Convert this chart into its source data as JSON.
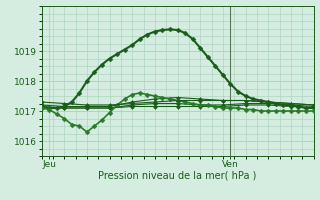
{
  "xlabel": "Pression niveau de la mer( hPa )",
  "bg_color": "#d4ede0",
  "grid_color": "#b0d4c0",
  "line_dark": "#1a5c1a",
  "line_mid": "#2a7a2a",
  "ylim": [
    1015.5,
    1020.5
  ],
  "yticks": [
    1016,
    1017,
    1018,
    1019
  ],
  "xlim": [
    0,
    72
  ],
  "x_jeu": 2,
  "x_ven": 50,
  "vline_x": 50,
  "series": [
    {
      "x": [
        0,
        2,
        4,
        6,
        8,
        10,
        12,
        14,
        16,
        18,
        20,
        22,
        24,
        26,
        28,
        30,
        32,
        34,
        36,
        38,
        40,
        42,
        44,
        46,
        48,
        50,
        52,
        54,
        56,
        58,
        60,
        62,
        64,
        66,
        68,
        70,
        72
      ],
      "y": [
        1017.15,
        1017.1,
        1017.1,
        1017.15,
        1017.3,
        1017.6,
        1018.0,
        1018.3,
        1018.55,
        1018.75,
        1018.9,
        1019.05,
        1019.2,
        1019.4,
        1019.55,
        1019.65,
        1019.7,
        1019.72,
        1019.7,
        1019.6,
        1019.4,
        1019.1,
        1018.8,
        1018.5,
        1018.2,
        1017.9,
        1017.65,
        1017.5,
        1017.4,
        1017.35,
        1017.3,
        1017.25,
        1017.2,
        1017.2,
        1017.15,
        1017.1,
        1017.1
      ],
      "lw": 1.5,
      "color": "#1a5c1a",
      "ms": 2.5
    },
    {
      "x": [
        0,
        6,
        12,
        18,
        24,
        30,
        36,
        42,
        48,
        54,
        60,
        66,
        72
      ],
      "y": [
        1017.1,
        1017.1,
        1017.1,
        1017.1,
        1017.15,
        1017.15,
        1017.15,
        1017.15,
        1017.15,
        1017.2,
        1017.2,
        1017.15,
        1017.1
      ],
      "lw": 0.8,
      "color": "#1a5c1a",
      "ms": 2
    },
    {
      "x": [
        0,
        6,
        12,
        18,
        24,
        30,
        36,
        42,
        48,
        54,
        60,
        66,
        72
      ],
      "y": [
        1017.15,
        1017.1,
        1017.1,
        1017.1,
        1017.2,
        1017.25,
        1017.25,
        1017.2,
        1017.2,
        1017.25,
        1017.25,
        1017.2,
        1017.15
      ],
      "lw": 0.8,
      "color": "#1a5c1a",
      "ms": 2
    },
    {
      "x": [
        0,
        6,
        12,
        18,
        24,
        30,
        36,
        42,
        48,
        54,
        60,
        66,
        72
      ],
      "y": [
        1017.2,
        1017.15,
        1017.15,
        1017.15,
        1017.3,
        1017.4,
        1017.45,
        1017.4,
        1017.35,
        1017.35,
        1017.3,
        1017.25,
        1017.2
      ],
      "lw": 0.8,
      "color": "#1a5c1a",
      "ms": 2
    },
    {
      "x": [
        0,
        2,
        4,
        6,
        8,
        10,
        12,
        14,
        16,
        18,
        20,
        22,
        24,
        26,
        28,
        30,
        32,
        34,
        36,
        38,
        40,
        42,
        44,
        46,
        48,
        50,
        52,
        54,
        56,
        58,
        60,
        62,
        64,
        66,
        68,
        70,
        72
      ],
      "y": [
        1017.1,
        1017.05,
        1016.9,
        1016.75,
        1016.55,
        1016.5,
        1016.3,
        1016.5,
        1016.7,
        1016.95,
        1017.2,
        1017.4,
        1017.55,
        1017.6,
        1017.55,
        1017.5,
        1017.45,
        1017.4,
        1017.35,
        1017.3,
        1017.25,
        1017.2,
        1017.2,
        1017.15,
        1017.1,
        1017.1,
        1017.1,
        1017.05,
        1017.05,
        1017.0,
        1017.0,
        1017.0,
        1017.0,
        1017.0,
        1017.0,
        1017.0,
        1017.0
      ],
      "lw": 1.2,
      "color": "#2a7a2a",
      "ms": 2.5
    },
    {
      "x": [
        0,
        6,
        12,
        18,
        24,
        30,
        36,
        42,
        48,
        54,
        60,
        66,
        72
      ],
      "y": [
        1017.3,
        1017.25,
        1017.2,
        1017.2,
        1017.25,
        1017.3,
        1017.35,
        1017.35,
        1017.35,
        1017.35,
        1017.3,
        1017.25,
        1017.2
      ],
      "lw": 0.8,
      "color": "#1a5c1a",
      "ms": 2
    }
  ],
  "vline_color": "#5a7a5a"
}
